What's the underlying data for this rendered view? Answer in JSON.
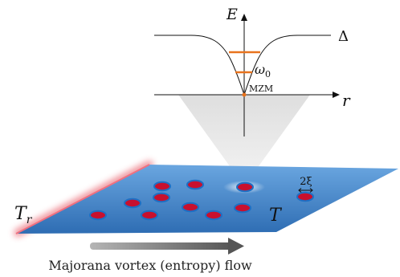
{
  "energy_plot": {
    "y_axis_label": "E",
    "x_axis_label": "r",
    "gap_label": "Δ",
    "level_label": "ω",
    "level_label_sub": "0",
    "zero_mode_label": "MZM"
  },
  "plane": {
    "left_temp": "T",
    "left_temp_sub": "r",
    "right_temp": "T",
    "size_label": "2ξ",
    "vortex_count": 11
  },
  "caption": "Majorana vortex (entropy) flow",
  "colors": {
    "plane_top": "#5a98d6",
    "plane_bottom": "#2f6fb5",
    "vortex_fill": "#c8102e",
    "vortex_ring": "#1e6fc4",
    "level_line": "#e8731e",
    "hot_edge": "#e43a4a",
    "arrow": "#6e6e6e",
    "cone": "#e1e1e1"
  }
}
